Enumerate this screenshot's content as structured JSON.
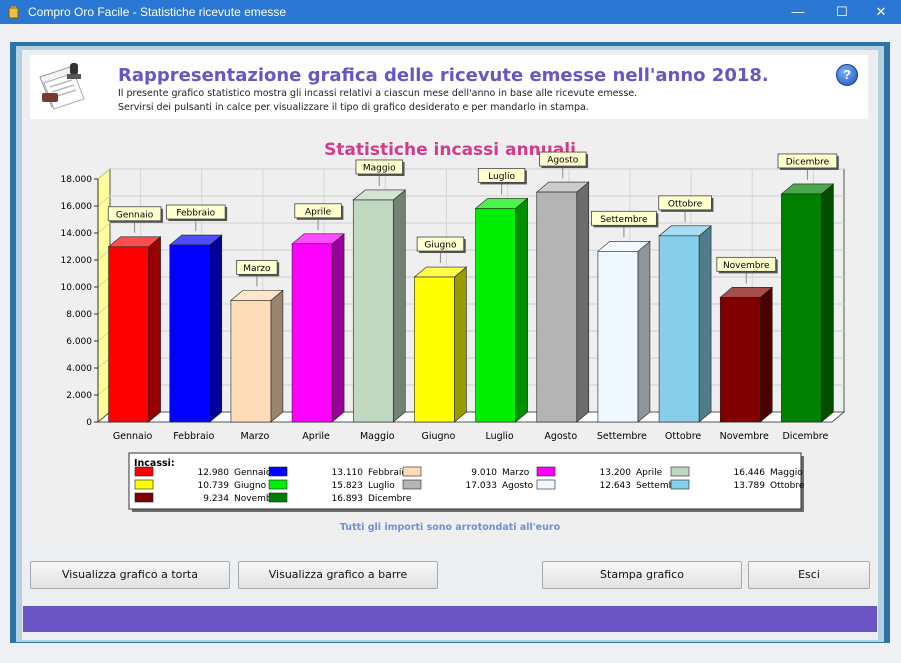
{
  "window": {
    "title": "Compro Oro Facile - Statistiche ricevute emesse",
    "minimize_glyph": "—",
    "maximize_glyph": "☐",
    "close_glyph": "✕"
  },
  "header": {
    "title": "Rappresentazione grafica delle ricevute emesse nell'anno 2018.",
    "description_line1": "Il presente grafico statistico mostra gli incassi relativi a ciascun mese dell'anno in base alle ricevute emesse.",
    "description_line2": "Servirsi dei pulsanti in calce per visualizzare il tipo di grafico desiderato e per mandarlo in stampa.",
    "help_glyph": "?"
  },
  "chart_data": {
    "type": "bar",
    "title": "Statistiche incassi annuali",
    "categories": [
      "Gennaio",
      "Febbraio",
      "Marzo",
      "Aprile",
      "Maggio",
      "Giugno",
      "Luglio",
      "Agosto",
      "Settembre",
      "Ottobre",
      "Novembre",
      "Dicembre"
    ],
    "values": [
      12980,
      13110,
      9010,
      13200,
      16446,
      10739,
      15823,
      17033,
      12643,
      13789,
      9234,
      16893
    ],
    "colors": [
      "#ff0000",
      "#0000ff",
      "#ffdcb8",
      "#ff00ff",
      "#c0d8c0",
      "#ffff00",
      "#00ee00",
      "#b4b4b4",
      "#f0f8ff",
      "#87ceeb",
      "#800000",
      "#008000"
    ],
    "ylim": [
      0,
      18000
    ],
    "yticks": [
      "0",
      "2.000",
      "4.000",
      "6.000",
      "8.000",
      "10.000",
      "12.000",
      "14.000",
      "16.000",
      "18.000"
    ],
    "grid": true,
    "legend_title": "Incassi:",
    "legend_items": [
      {
        "value": "12.980",
        "label": "Gennaio"
      },
      {
        "value": "13.110",
        "label": "Febbraio"
      },
      {
        "value": "9.010",
        "label": "Marzo"
      },
      {
        "value": "13.200",
        "label": "Aprile"
      },
      {
        "value": "16.446",
        "label": "Maggio"
      },
      {
        "value": "10.739",
        "label": "Giugno"
      },
      {
        "value": "15.823",
        "label": "Luglio"
      },
      {
        "value": "17.033",
        "label": "Agosto"
      },
      {
        "value": "12.643",
        "label": "Settembre"
      },
      {
        "value": "13.789",
        "label": "Ottobre"
      },
      {
        "value": "9.234",
        "label": "Novembre"
      },
      {
        "value": "16.893",
        "label": "Dicembre"
      }
    ],
    "footnote": "Tutti gli importi sono arrotondati all'euro",
    "title_color": "#d23c8c",
    "footnote_color": "#6f8fd8"
  },
  "buttons": {
    "pie": "Visualizza grafico a torta",
    "bar": "Visualizza grafico a barre",
    "print": "Stampa grafico",
    "exit": "Esci"
  }
}
